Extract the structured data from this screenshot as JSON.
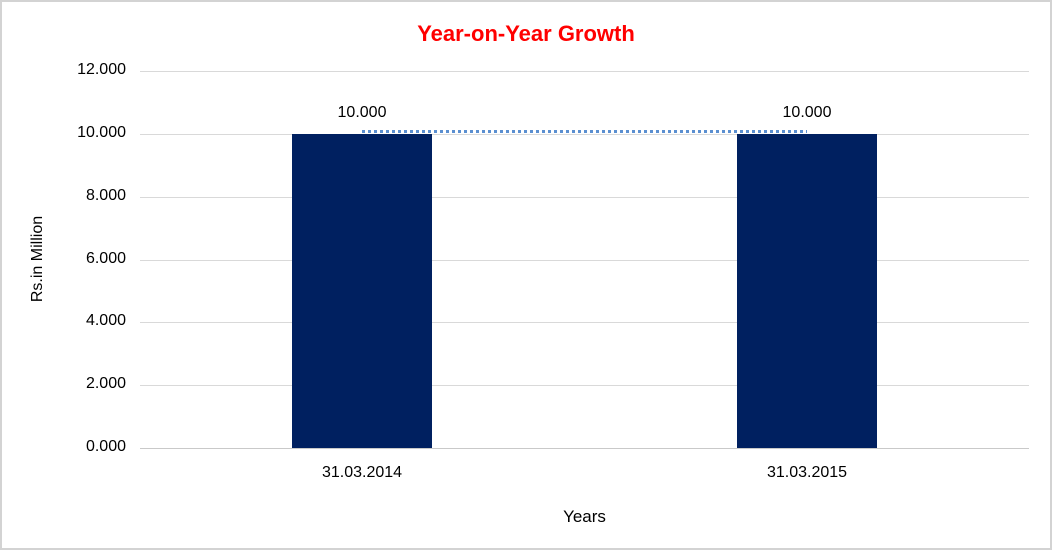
{
  "window": {
    "background": "#ffffff",
    "border_color": "#d3d3d3"
  },
  "chart_data": {
    "type": "bar",
    "title": "Year-on-Year Growth",
    "title_color": "#ff0000",
    "xlabel": "Years",
    "ylabel": "Rs.in Million",
    "categories": [
      "31.03.2014",
      "31.03.2015"
    ],
    "series": [
      {
        "values": [
          10.0,
          10.0
        ],
        "labels": [
          "10.000",
          "10.000"
        ],
        "color": "#002060"
      }
    ],
    "yticks": [
      "12.000",
      "10.000",
      "8.000",
      "6.000",
      "4.000",
      "2.000",
      "0.000"
    ],
    "ylim": [
      0,
      12
    ],
    "grid": true,
    "grid_color": "#d9d9d9",
    "axis_line_color": "#c9c9c9",
    "legend": "none",
    "trendline": {
      "style": "dotted",
      "color": "#5b8fd0",
      "values": [
        10.0,
        10.0
      ]
    }
  }
}
